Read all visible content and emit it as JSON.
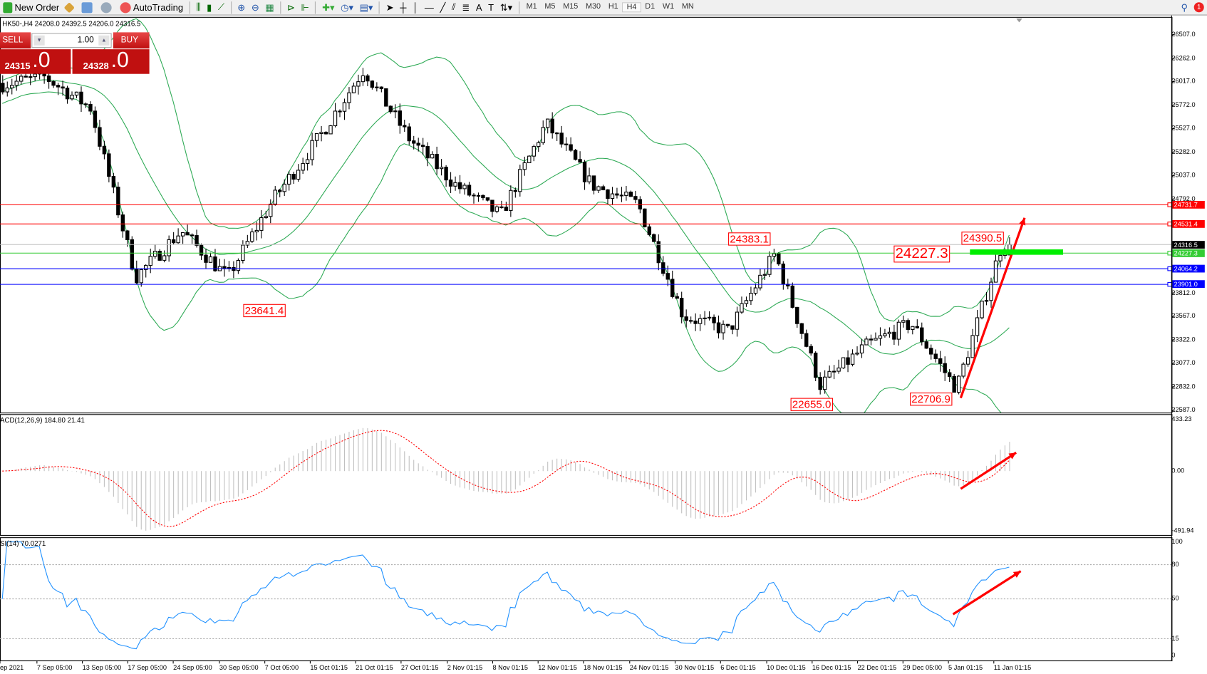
{
  "toolbar": {
    "new_order": "New Order",
    "autotrading": "AutoTrading",
    "timeframes": [
      "M1",
      "M5",
      "M15",
      "M30",
      "H1",
      "H4",
      "D1",
      "W1",
      "MN"
    ],
    "active_timeframe": "H4",
    "notification_count": "1"
  },
  "chart": {
    "header": "HK50-,H4  24208.0 24392.5 24206.0 24316.5",
    "trade_panel": {
      "sell": "SELL",
      "buy": "BUY",
      "lot": "1.00",
      "sell_price_main": "24315",
      "sell_price_frac": ".0",
      "buy_price_main": "24328",
      "buy_price_frac": ".0"
    },
    "price_ticks": [
      "26507.0",
      "26262.0",
      "26017.0",
      "25772.0",
      "25527.0",
      "25282.0",
      "25037.0",
      "24792.0",
      "23812.0",
      "23567.0",
      "23322.0",
      "23077.0",
      "22832.0",
      "22587.0"
    ],
    "levels": [
      {
        "price": "24731.7",
        "color": "#ff0000"
      },
      {
        "price": "24531.4",
        "color": "#ff0000"
      },
      {
        "price": "24316.5",
        "color": "#000000",
        "line": "#c0c0c0"
      },
      {
        "price": "24227.3",
        "color": "#33cc33"
      },
      {
        "price": "24064.2",
        "color": "#0000ff"
      },
      {
        "price": "23901.0",
        "color": "#0000ff"
      }
    ],
    "annotations": [
      "24383.1",
      "23641.4",
      "24227.3",
      "24390.5",
      "22655.0",
      "22706.9"
    ],
    "time_labels": [
      "ep 2021",
      "7 Sep 05:00",
      "13 Sep 05:00",
      "17 Sep 05:00",
      "24 Sep 05:00",
      "30 Sep 05:00",
      "7 Oct 05:00",
      "15 Oct 01:15",
      "21 Oct 01:15",
      "27 Oct 01:15",
      "2 Nov 01:15",
      "8 Nov 01:15",
      "12 Nov 01:15",
      "18 Nov 01:15",
      "24 Nov 01:15",
      "30 Nov 01:15",
      "6 Dec 01:15",
      "10 Dec 01:15",
      "16 Dec 01:15",
      "22 Dec 01:15",
      "29 Dec 05:00",
      "5 Jan 01:15",
      "11 Jan 01:15"
    ]
  },
  "macd": {
    "label": "ACD(12,26,9) 184.80 21.41",
    "max": "433.23",
    "zero": "0.00",
    "min": "-491.94"
  },
  "rsi": {
    "label": "SI(14) 70.0271",
    "levels": [
      "100",
      "80",
      "50",
      "15",
      "0"
    ]
  },
  "chart_data": {
    "type": "candlestick",
    "symbol": "HK50-",
    "timeframe": "H4",
    "ylim": [
      22587,
      26507
    ],
    "approx_close_path": [
      [
        "Sep 2021",
        25985
      ],
      [
        "7 Sep",
        26065
      ],
      [
        "13 Sep",
        25744
      ],
      [
        "17 Sep",
        23977
      ],
      [
        "24 Sep",
        24459
      ],
      [
        "30 Sep",
        23977
      ],
      [
        "7 Oct",
        24780
      ],
      [
        "15 Oct",
        25423
      ],
      [
        "21 Oct",
        26145
      ],
      [
        "27 Oct",
        25423
      ],
      [
        "2 Nov",
        24941
      ],
      [
        "8 Nov",
        24619
      ],
      [
        "12 Nov",
        25583
      ],
      [
        "18 Nov",
        24941
      ],
      [
        "24 Nov",
        24740
      ],
      [
        "30 Nov",
        23575
      ],
      [
        "6 Dec",
        23414
      ],
      [
        "10 Dec",
        24218
      ],
      [
        "16 Dec",
        22852
      ],
      [
        "22 Dec",
        23254
      ],
      [
        "29 Dec",
        23495
      ],
      [
        "5 Jan",
        22812
      ],
      [
        "11 Jan",
        24316.5
      ]
    ],
    "last_bar": {
      "open": 24208.0,
      "high": 24392.5,
      "low": 24206.0,
      "close": 24316.5
    },
    "colors": {
      "bollinger": "#2eaa55",
      "macd_hist": "#c0c0c0",
      "macd_signal": "#ff0000",
      "rsi": "#1e90ff",
      "arrow": "#ff0000"
    }
  }
}
